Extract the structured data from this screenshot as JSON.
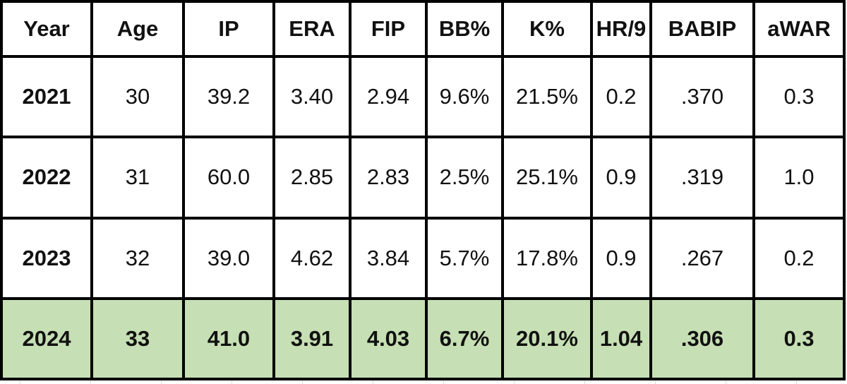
{
  "table": {
    "headers": [
      "Year",
      "Age",
      "IP",
      "ERA",
      "FIP",
      "BB%",
      "K%",
      "HR/9",
      "BABIP",
      "aWAR"
    ],
    "rows": [
      [
        "2021",
        "30",
        "39.2",
        "3.40",
        "2.94",
        "9.6%",
        "21.5%",
        "0.2",
        ".370",
        "0.3"
      ],
      [
        "2022",
        "31",
        "60.0",
        "2.85",
        "2.83",
        "2.5%",
        "25.1%",
        "0.9",
        ".319",
        "1.0"
      ],
      [
        "2023",
        "32",
        "39.0",
        "4.62",
        "3.84",
        "5.7%",
        "17.8%",
        "0.9",
        ".267",
        "0.2"
      ],
      [
        "2024",
        "33",
        "41.0",
        "3.91",
        "4.03",
        "6.7%",
        "20.1%",
        "1.04",
        ".306",
        "0.3"
      ]
    ],
    "highlight_row_color": "#c6dfb4",
    "border_color": "#000000"
  }
}
